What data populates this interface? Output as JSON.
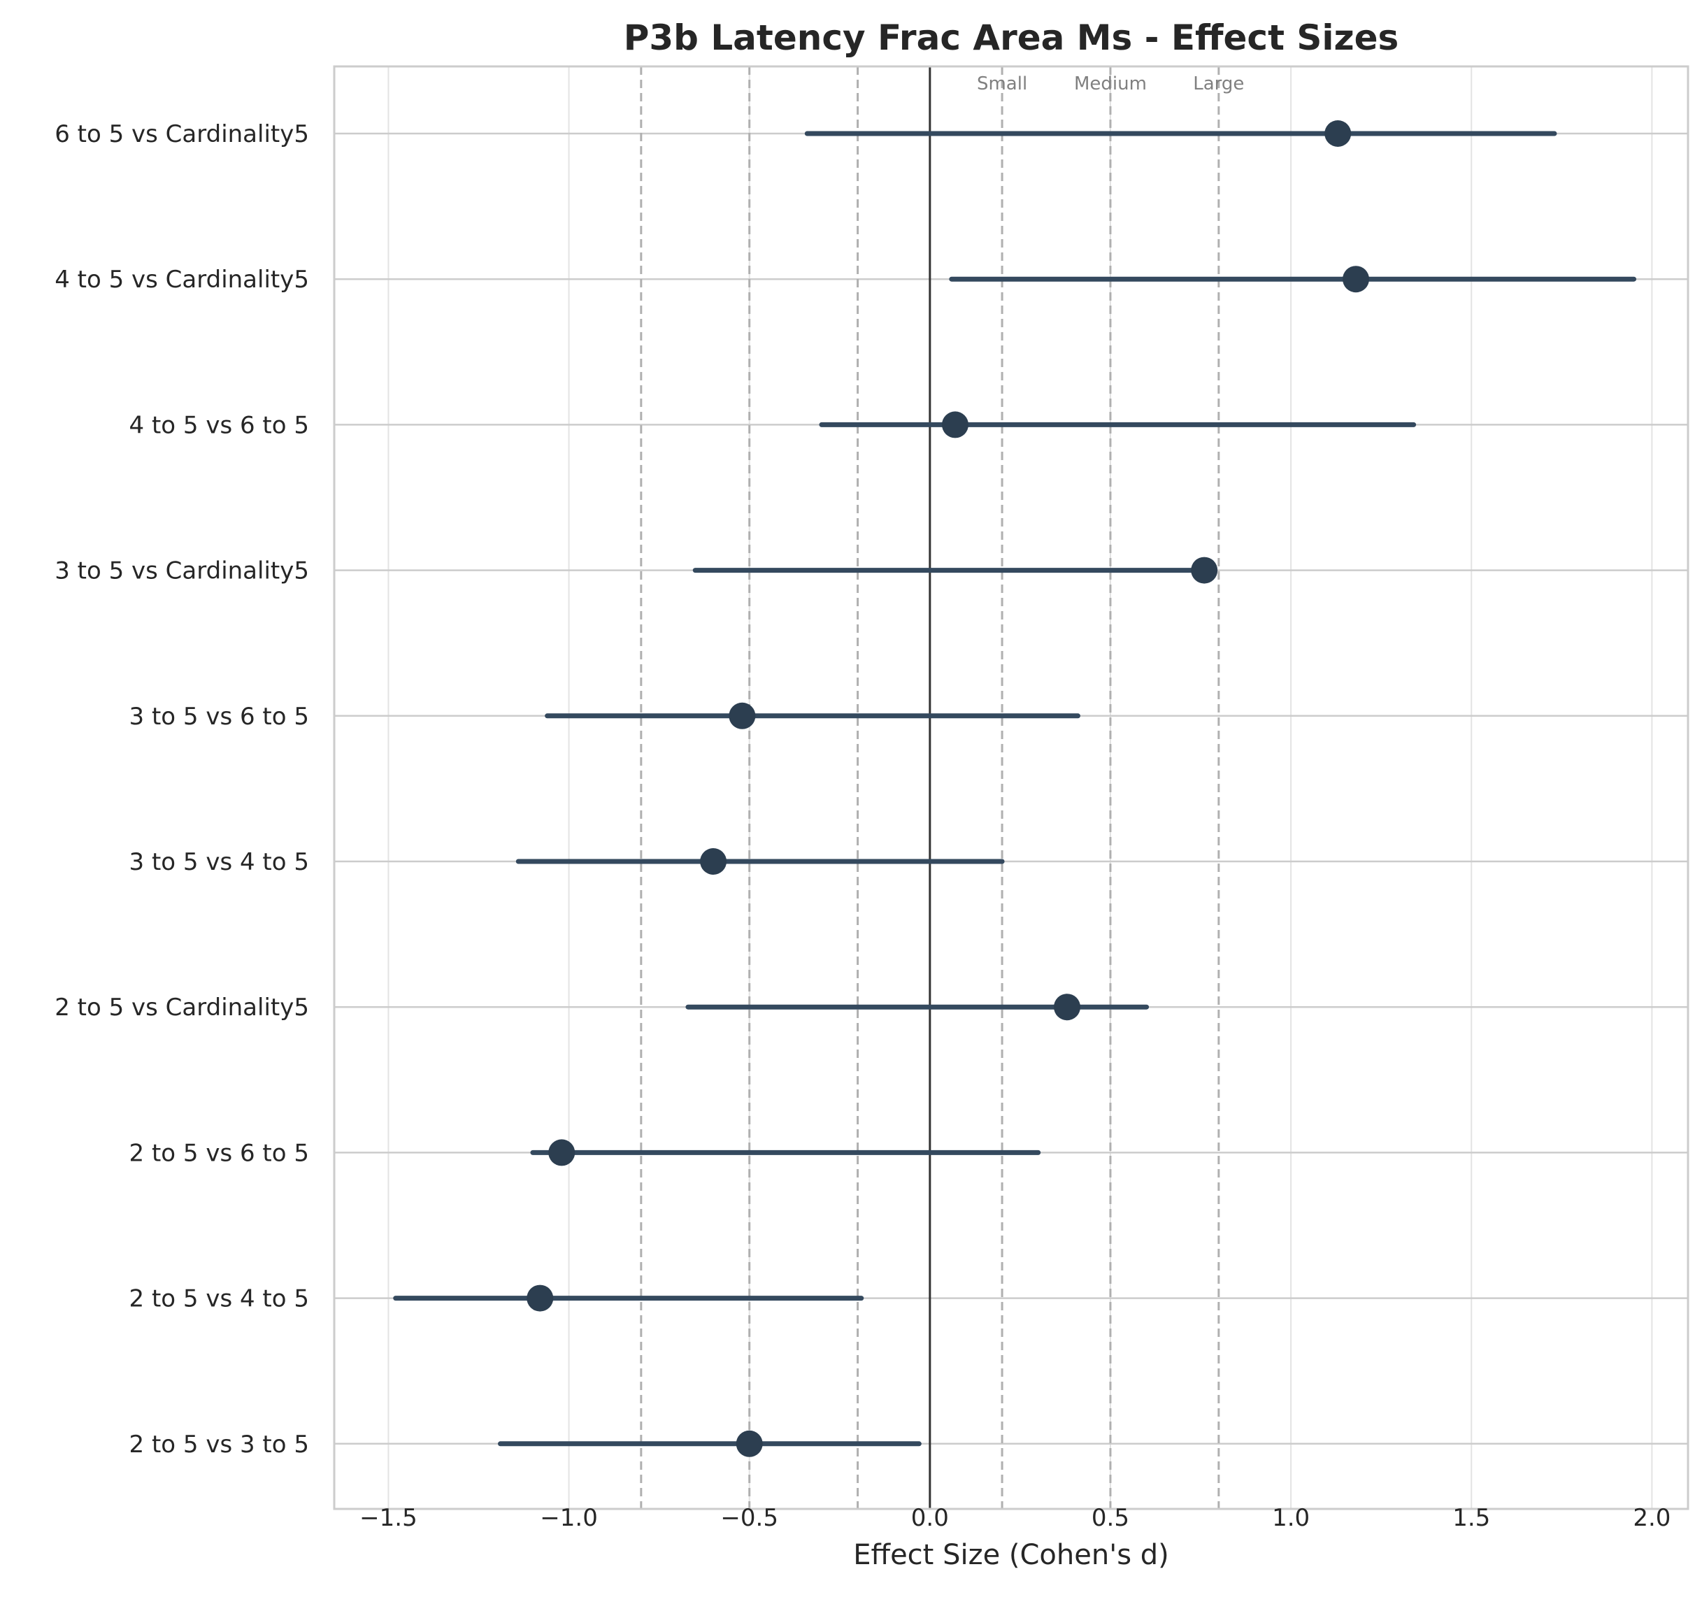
{
  "chart_data": {
    "type": "forest",
    "title": "P3b Latency Frac Area Ms - Effect Sizes",
    "xlabel": "Effect Size (Cohen's d)",
    "ylabel": "",
    "xlim": [
      -1.65,
      2.1
    ],
    "xticks": [
      -1.5,
      -1.0,
      -0.5,
      0.0,
      0.5,
      1.0,
      1.5,
      2.0
    ],
    "xtick_labels": [
      "−1.5",
      "−1.0",
      "−0.5",
      "0.0",
      "0.5",
      "1.0",
      "1.5",
      "2.0"
    ],
    "grid": true,
    "zero_line": 0.0,
    "reference_lines": [
      {
        "x": -0.8,
        "label": ""
      },
      {
        "x": -0.5,
        "label": ""
      },
      {
        "x": -0.2,
        "label": ""
      },
      {
        "x": 0.2,
        "label": "Small"
      },
      {
        "x": 0.5,
        "label": "Medium"
      },
      {
        "x": 0.8,
        "label": "Large"
      }
    ],
    "rows": [
      {
        "label": "6 to 5 vs Cardinality5",
        "d": 1.13,
        "ci": [
          -0.34,
          1.73
        ]
      },
      {
        "label": "4 to 5 vs Cardinality5",
        "d": 1.18,
        "ci": [
          0.06,
          1.95
        ]
      },
      {
        "label": "4 to 5 vs 6 to 5",
        "d": 0.07,
        "ci": [
          -0.3,
          1.34
        ]
      },
      {
        "label": "3 to 5 vs Cardinality5",
        "d": 0.76,
        "ci": [
          -0.65,
          0.76
        ]
      },
      {
        "label": "3 to 5 vs 6 to 5",
        "d": -0.52,
        "ci": [
          -1.06,
          0.41
        ]
      },
      {
        "label": "3 to 5 vs 4 to 5",
        "d": -0.6,
        "ci": [
          -1.14,
          0.2
        ]
      },
      {
        "label": "2 to 5 vs Cardinality5",
        "d": 0.38,
        "ci": [
          -0.67,
          0.6
        ]
      },
      {
        "label": "2 to 5 vs 6 to 5",
        "d": -1.02,
        "ci": [
          -1.1,
          0.3
        ]
      },
      {
        "label": "2 to 5 vs 4 to 5",
        "d": -1.08,
        "ci": [
          -1.48,
          -0.19
        ]
      },
      {
        "label": "2 to 5 vs 3 to 5",
        "d": -0.5,
        "ci": [
          -1.19,
          -0.03
        ]
      }
    ],
    "colors": {
      "marker": "#2c3e50",
      "ci_line": "#34495e",
      "zero_line": "#333333",
      "reference_line": "#b0b0b0",
      "grid": "#e3e3e3",
      "row_line": "#cccccc",
      "frame": "#cccccc"
    }
  }
}
